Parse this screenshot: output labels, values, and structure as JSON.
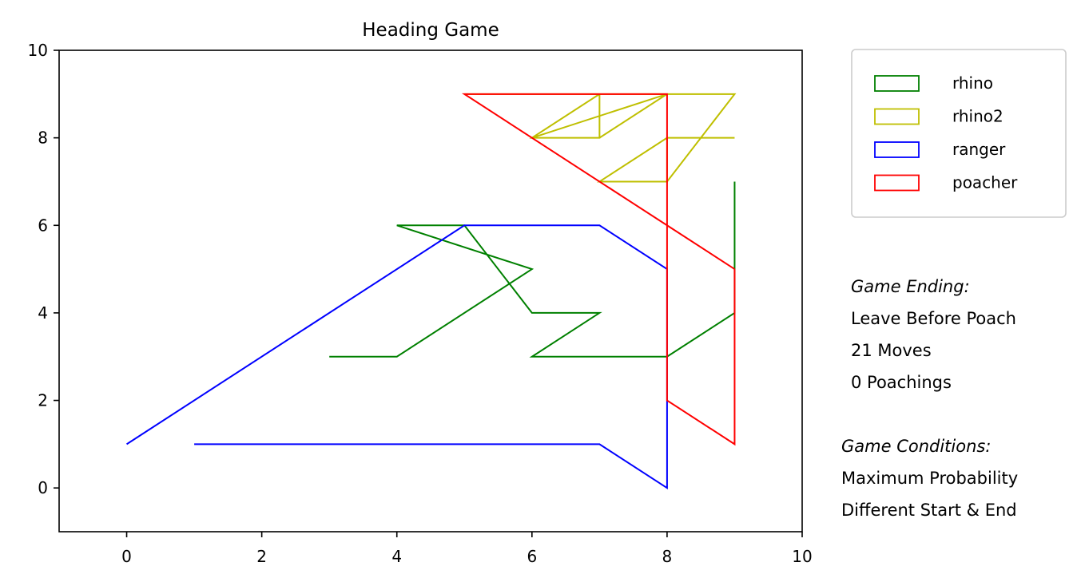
{
  "chart_data": {
    "type": "line",
    "title": "Heading Game",
    "xlabel": "",
    "ylabel": "",
    "xlim": [
      -1,
      10
    ],
    "ylim": [
      -1,
      10
    ],
    "xticks": [
      0,
      2,
      4,
      6,
      8,
      10
    ],
    "yticks": [
      0,
      2,
      4,
      6,
      8,
      10
    ],
    "grid": false,
    "legend_position": "outside-top-right",
    "series": [
      {
        "name": "rhino",
        "color": "#008000",
        "points": [
          [
            3,
            3
          ],
          [
            4,
            3
          ],
          [
            6,
            5
          ],
          [
            4,
            6
          ],
          [
            5,
            6
          ],
          [
            6,
            4
          ],
          [
            7,
            4
          ],
          [
            6,
            3
          ],
          [
            8,
            3
          ],
          [
            9,
            4
          ],
          [
            9,
            7
          ]
        ]
      },
      {
        "name": "rhino2",
        "color": "#bfbf00",
        "points": [
          [
            7,
            7
          ],
          [
            8,
            7
          ],
          [
            8,
            8
          ],
          [
            9,
            8
          ],
          [
            8,
            8
          ],
          [
            7,
            7
          ],
          [
            8,
            7
          ],
          [
            9,
            9
          ],
          [
            8,
            9
          ],
          [
            6,
            8
          ],
          [
            7,
            8
          ],
          [
            7,
            9
          ],
          [
            6,
            9
          ],
          [
            8,
            9
          ],
          [
            5,
            9
          ],
          [
            7,
            9
          ],
          [
            6,
            8
          ],
          [
            7,
            8
          ],
          [
            8,
            9
          ],
          [
            9,
            9
          ]
        ]
      },
      {
        "name": "ranger",
        "color": "#0000ff",
        "points": [
          [
            1,
            1
          ],
          [
            7,
            1
          ],
          [
            8,
            0
          ],
          [
            8,
            2
          ],
          [
            8,
            2
          ],
          [
            8,
            5
          ],
          [
            7,
            6
          ],
          [
            5,
            6
          ],
          [
            0,
            1
          ]
        ]
      },
      {
        "name": "poacher",
        "color": "#ff0000",
        "points": [
          [
            9,
            5
          ],
          [
            8,
            6
          ],
          [
            5,
            9
          ],
          [
            8,
            9
          ],
          [
            8,
            2
          ],
          [
            9,
            1
          ],
          [
            9,
            5
          ]
        ]
      }
    ]
  },
  "notes": {
    "ending_heading": "Game Ending:",
    "ending_type": "Leave Before Poach",
    "moves": "21 Moves",
    "poachings": "0 Poachings",
    "conditions_heading": "Game Conditions:",
    "condition_1": "Maximum Probability",
    "condition_2": "Different Start & End"
  }
}
